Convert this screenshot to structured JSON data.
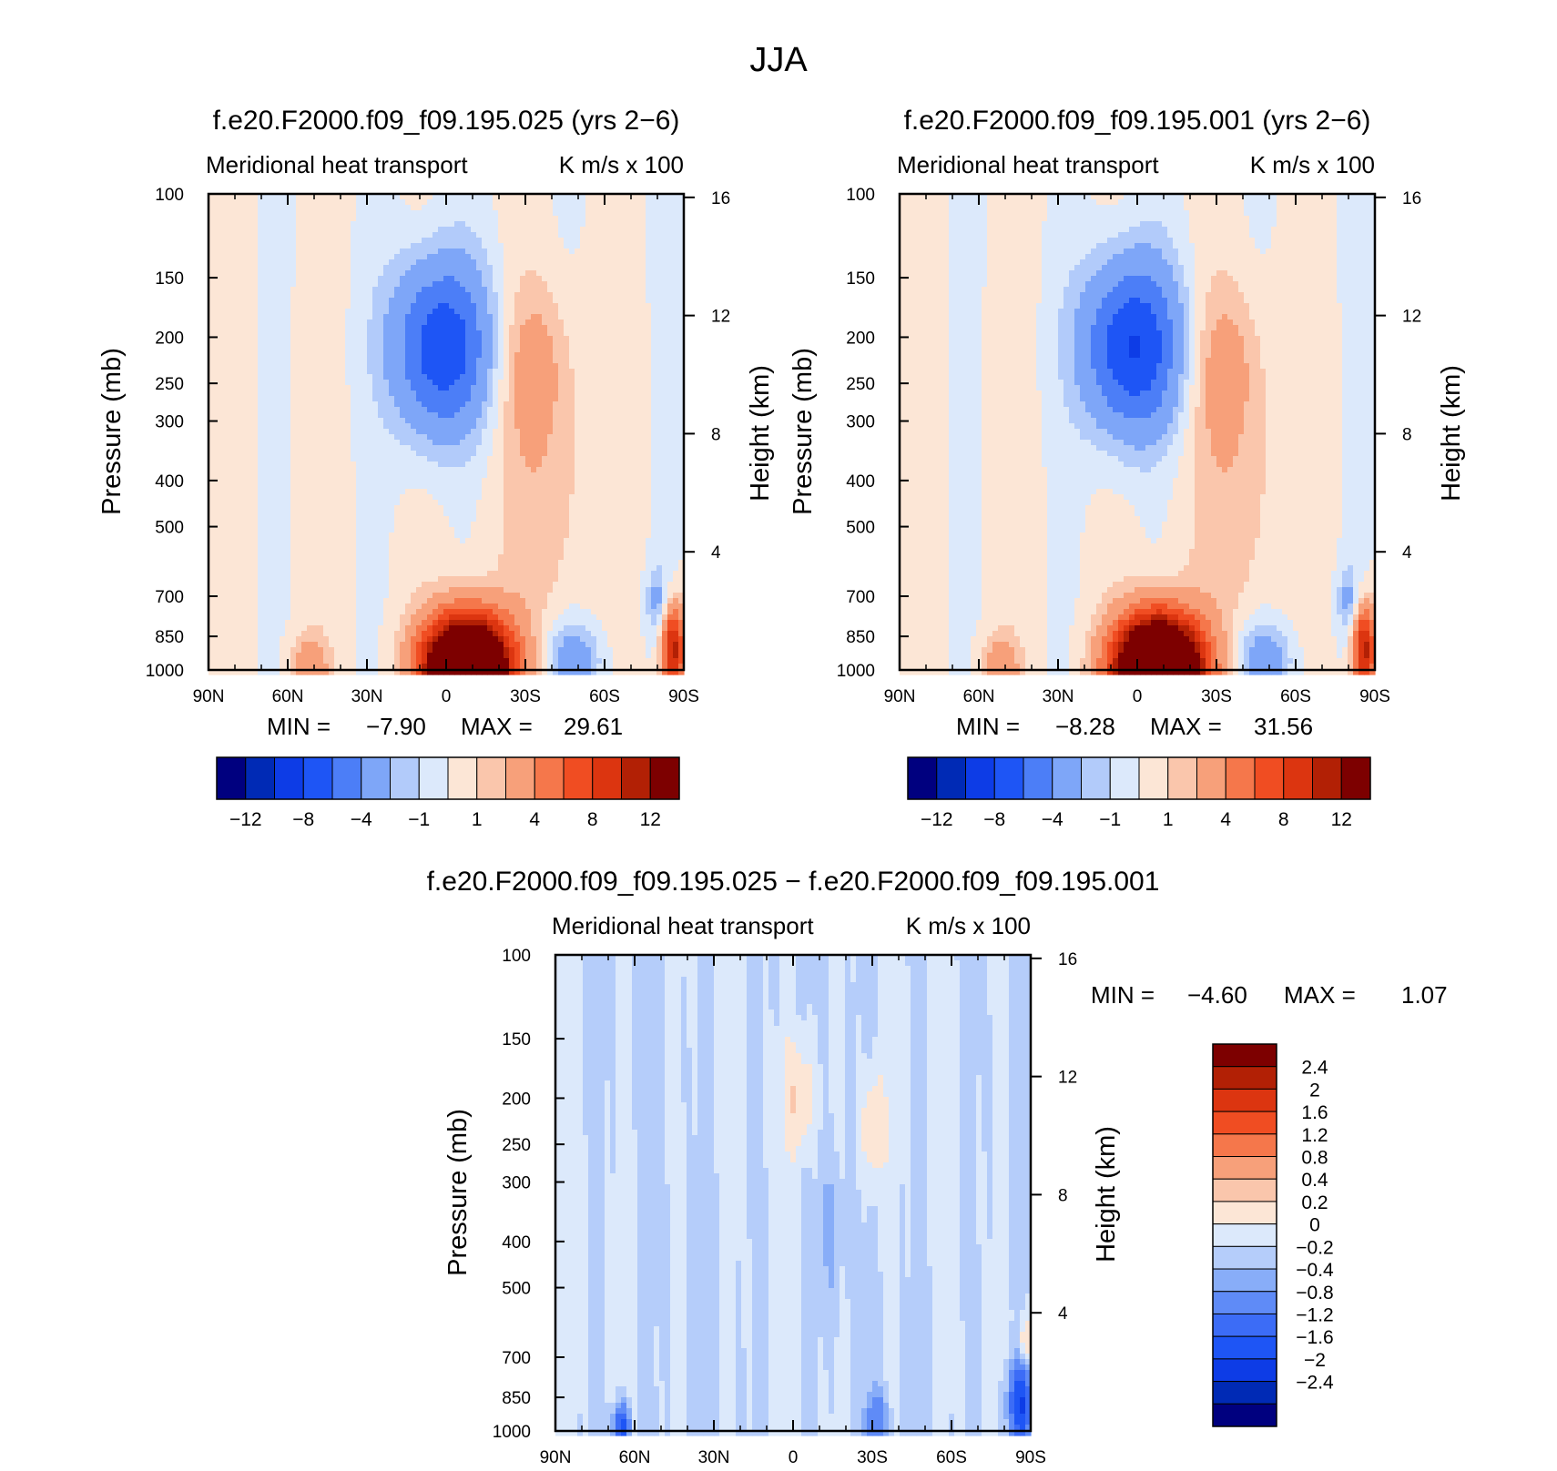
{
  "figure": {
    "title": "JJA"
  },
  "colors": {
    "panel_levels": [
      "#00007f",
      "#002ab5",
      "#0d3ce6",
      "#1e55f5",
      "#4c7ef7",
      "#7ea6f8",
      "#b2cbfa",
      "#dce9fb",
      "#fce6d6",
      "#fac6ac",
      "#f7a07a",
      "#f5774b",
      "#f04d22",
      "#dc3510",
      "#b22005",
      "#7d0000"
    ],
    "diff_levels": [
      "#00007f",
      "#002ab5",
      "#0d3ce6",
      "#1e55f5",
      "#3c6cf6",
      "#5f8bf7",
      "#88adf8",
      "#b5cdfa",
      "#dce9fb",
      "#fce6d6",
      "#fac6ac",
      "#f7a07a",
      "#f5774b",
      "#f04d22",
      "#dc3510",
      "#b22005",
      "#7d0000"
    ]
  },
  "chart_data": [
    {
      "type": "heatmap",
      "title": "f.e20.F2000.f09_f09.195.025 (yrs 2−6)",
      "subtitle_left": "Meridional heat transport",
      "subtitle_right": "K m/s x 100",
      "xlabel": "",
      "ylabel": "Pressure (mb)",
      "ylabel_right": "Height (km)",
      "x_tick_labels": [
        "90N",
        "60N",
        "30N",
        "0",
        "30S",
        "60S",
        "90S"
      ],
      "y_tick_labels": [
        "100",
        "150",
        "200",
        "250",
        "300",
        "400",
        "500",
        "700",
        "850",
        "1000"
      ],
      "y_right_tick_labels": [
        "16",
        "12",
        "8",
        "4"
      ],
      "y_scale": "log pressure",
      "ylim": [
        1000,
        100
      ],
      "stats": {
        "min_label": "MIN =",
        "min": "−7.90",
        "max_label": "MAX =",
        "max": "29.61"
      },
      "colorbar": {
        "orientation": "horizontal",
        "levels": [
          -16,
          -12,
          -10,
          -8,
          -6,
          -4,
          -2,
          -1,
          0,
          1,
          2,
          4,
          6,
          8,
          10,
          12,
          16
        ],
        "tick_labels": [
          "−12",
          "−8",
          "−4",
          "−1",
          "1",
          "4",
          "8",
          "12"
        ]
      },
      "features": [
        {
          "label": "upper tropospheric minimum",
          "lat": 3,
          "pressure": 200,
          "value": -7.9
        },
        {
          "label": "lower tropospheric maximum",
          "lat": -8,
          "pressure": 1000,
          "value": 29.61
        },
        {
          "label": "upper positive lobe",
          "lat": -33,
          "pressure": 220,
          "value": 2
        },
        {
          "label": "southern low-level negative",
          "lat": -48,
          "pressure": 950,
          "value": -3
        },
        {
          "label": "polar low-level positive",
          "lat": -85,
          "pressure": 900,
          "value": 10
        }
      ]
    },
    {
      "type": "heatmap",
      "title": "f.e20.F2000.f09_f09.195.001 (yrs 2−6)",
      "subtitle_left": "Meridional heat transport",
      "subtitle_right": "K m/s x 100",
      "xlabel": "",
      "ylabel": "Pressure (mb)",
      "ylabel_right": "Height (km)",
      "x_tick_labels": [
        "90N",
        "60N",
        "30N",
        "0",
        "30S",
        "60S",
        "90S"
      ],
      "y_tick_labels": [
        "100",
        "150",
        "200",
        "250",
        "300",
        "400",
        "500",
        "700",
        "850",
        "1000"
      ],
      "y_right_tick_labels": [
        "16",
        "12",
        "8",
        "4"
      ],
      "y_scale": "log pressure",
      "ylim": [
        1000,
        100
      ],
      "stats": {
        "min_label": "MIN =",
        "min": "−8.28",
        "max_label": "MAX =",
        "max": "31.56"
      },
      "colorbar": {
        "orientation": "horizontal",
        "levels": [
          -16,
          -12,
          -10,
          -8,
          -6,
          -4,
          -2,
          -1,
          0,
          1,
          2,
          4,
          6,
          8,
          10,
          12,
          16
        ],
        "tick_labels": [
          "−12",
          "−8",
          "−4",
          "−1",
          "1",
          "4",
          "8",
          "12"
        ]
      },
      "features": [
        {
          "label": "upper tropospheric minimum",
          "lat": 4,
          "pressure": 200,
          "value": -8.28
        },
        {
          "label": "lower tropospheric maximum",
          "lat": -8,
          "pressure": 1000,
          "value": 31.56
        },
        {
          "label": "upper positive lobe",
          "lat": -33,
          "pressure": 230,
          "value": 2
        },
        {
          "label": "southern low-level negative",
          "lat": -48,
          "pressure": 950,
          "value": -3
        },
        {
          "label": "polar low-level positive",
          "lat": -85,
          "pressure": 900,
          "value": 10
        }
      ]
    },
    {
      "type": "heatmap",
      "title": "f.e20.F2000.f09_f09.195.025 − f.e20.F2000.f09_f09.195.001",
      "subtitle_left": "Meridional heat transport",
      "subtitle_right": "K m/s x 100",
      "xlabel": "",
      "ylabel": "Pressure (mb)",
      "ylabel_right": "Height (km)",
      "x_tick_labels": [
        "90N",
        "60N",
        "30N",
        "0",
        "30S",
        "60S",
        "90S"
      ],
      "y_tick_labels": [
        "100",
        "150",
        "200",
        "250",
        "300",
        "400",
        "500",
        "700",
        "850",
        "1000"
      ],
      "y_right_tick_labels": [
        "16",
        "12",
        "8",
        "4"
      ],
      "y_scale": "log pressure",
      "ylim": [
        1000,
        100
      ],
      "stats": {
        "min_label": "MIN =",
        "min": "−4.60",
        "max_label": "MAX =",
        "max": "1.07"
      },
      "colorbar": {
        "orientation": "vertical",
        "levels": [
          -3.2,
          -2.4,
          -2,
          -1.6,
          -1.2,
          -0.8,
          -0.4,
          -0.2,
          0,
          0.2,
          0.4,
          0.8,
          1.2,
          1.6,
          2,
          2.4,
          3.2
        ],
        "tick_labels": [
          "2.4",
          "2",
          "1.6",
          "1.2",
          "0.8",
          "0.4",
          "0.2",
          "0",
          "−0.2",
          "−0.4",
          "−0.8",
          "−1.2",
          "−1.6",
          "−2",
          "−2.4"
        ]
      },
      "features": [
        {
          "label": "upper positive near equator",
          "lat": -5,
          "pressure": 210,
          "value": 0.4
        },
        {
          "label": "upper positive 30S",
          "lat": -30,
          "pressure": 230,
          "value": 0.4
        },
        {
          "label": "midlevel negative",
          "lat": -15,
          "pressure": 380,
          "value": -0.3
        },
        {
          "label": "low-level negative 60N",
          "lat": 65,
          "pressure": 980,
          "value": -1.5
        },
        {
          "label": "low-level negative 30S",
          "lat": -32,
          "pressure": 970,
          "value": -0.8
        },
        {
          "label": "polar low-level negative",
          "lat": -85,
          "pressure": 880,
          "value": -1.5
        }
      ]
    }
  ]
}
